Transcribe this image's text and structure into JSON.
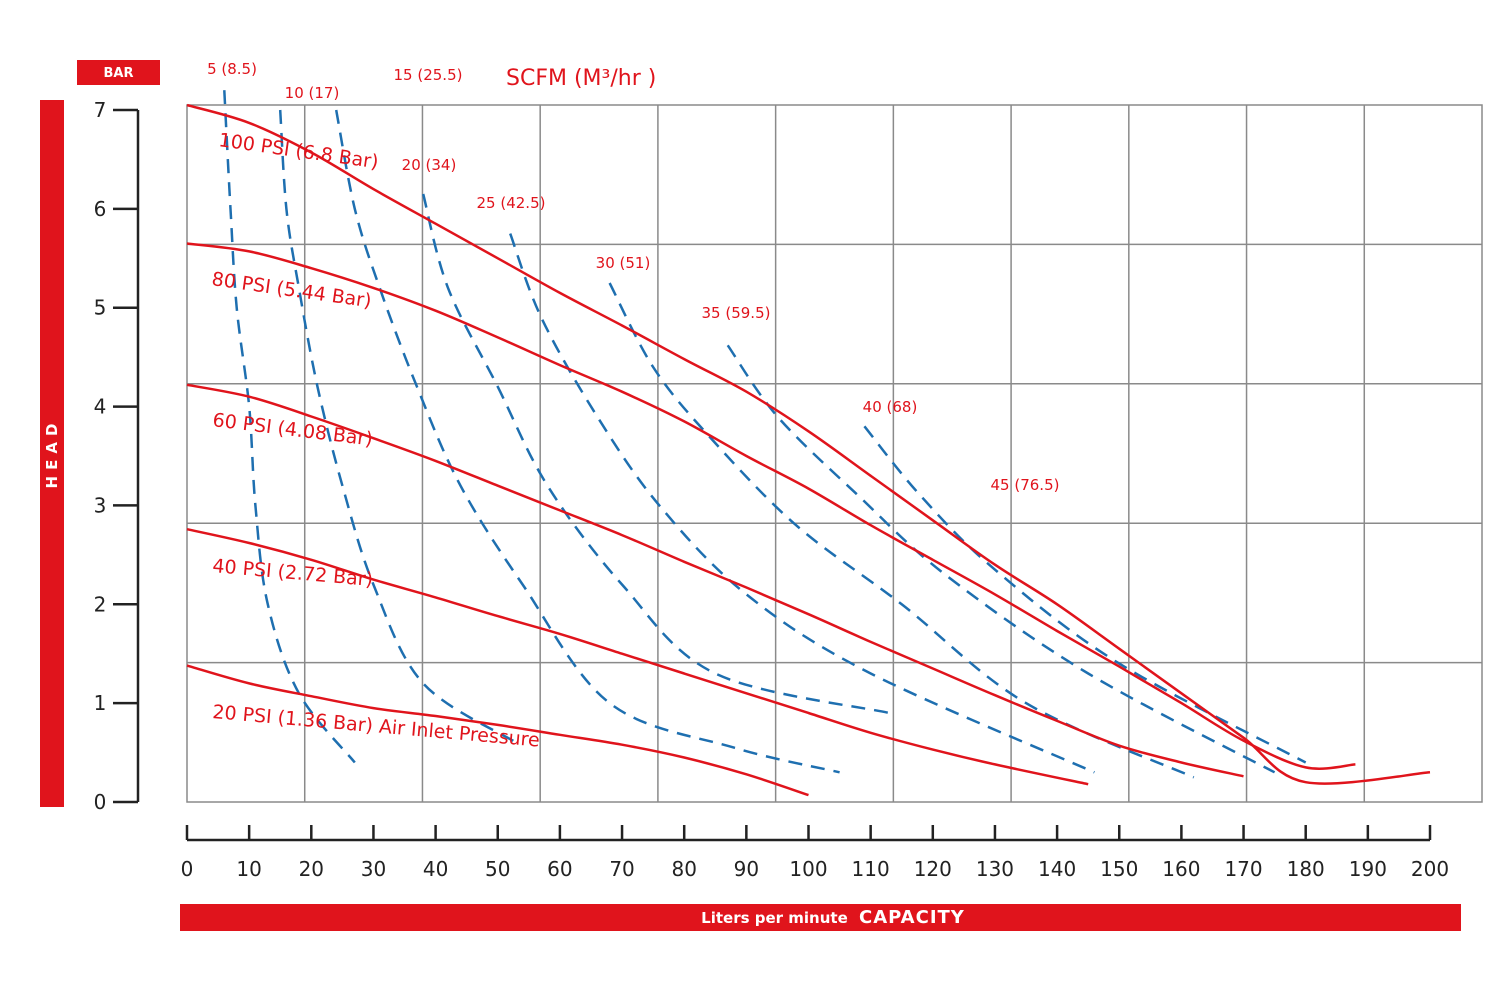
{
  "chart_data": {
    "type": "line",
    "ylabel": "HEAD",
    "yunit": "BAR",
    "xlabel_prefix": "Liters per minute",
    "xlabel_main": "CAPACITY",
    "flow_title": "SCFM (M³/hr )",
    "xlim": [
      0,
      200
    ],
    "ylim": [
      0,
      7
    ],
    "y_ticks": [
      "0",
      "1",
      "2",
      "3",
      "4",
      "5",
      "6",
      "7"
    ],
    "x_ticks": [
      "0",
      "10",
      "20",
      "30",
      "40",
      "50",
      "60",
      "70",
      "80",
      "90",
      "100",
      "110",
      "120",
      "130",
      "140",
      "150",
      "160",
      "170",
      "180",
      "190",
      "200"
    ],
    "grid": true,
    "colors": {
      "accent": "#e0141c",
      "flow": "#1e6fb0",
      "grid": "#8a8a8a",
      "axis": "#222222"
    },
    "pressure_series": [
      {
        "name": "100 PSI (6.8 Bar)",
        "points": [
          [
            0,
            7.05
          ],
          [
            10,
            6.87
          ],
          [
            20,
            6.57
          ],
          [
            30,
            6.2
          ],
          [
            40,
            5.85
          ],
          [
            50,
            5.5
          ],
          [
            60,
            5.15
          ],
          [
            70,
            4.82
          ],
          [
            80,
            4.48
          ],
          [
            90,
            4.15
          ],
          [
            100,
            3.75
          ],
          [
            110,
            3.3
          ],
          [
            120,
            2.85
          ],
          [
            130,
            2.4
          ],
          [
            140,
            2.0
          ],
          [
            150,
            1.55
          ],
          [
            160,
            1.1
          ],
          [
            170,
            0.65
          ],
          [
            180,
            0.2
          ],
          [
            200,
            0.3
          ]
        ]
      },
      {
        "name": "80 PSI (5.44 Bar)",
        "points": [
          [
            0,
            5.65
          ],
          [
            10,
            5.57
          ],
          [
            20,
            5.4
          ],
          [
            30,
            5.2
          ],
          [
            40,
            4.97
          ],
          [
            50,
            4.7
          ],
          [
            60,
            4.42
          ],
          [
            70,
            4.15
          ],
          [
            80,
            3.85
          ],
          [
            90,
            3.5
          ],
          [
            100,
            3.17
          ],
          [
            110,
            2.8
          ],
          [
            120,
            2.45
          ],
          [
            130,
            2.1
          ],
          [
            140,
            1.73
          ],
          [
            150,
            1.37
          ],
          [
            160,
            1.0
          ],
          [
            170,
            0.62
          ],
          [
            180,
            0.35
          ],
          [
            188,
            0.38
          ]
        ]
      },
      {
        "name": "60 PSI (4.08 Bar)",
        "points": [
          [
            0,
            4.22
          ],
          [
            10,
            4.1
          ],
          [
            20,
            3.9
          ],
          [
            30,
            3.68
          ],
          [
            40,
            3.45
          ],
          [
            50,
            3.2
          ],
          [
            60,
            2.95
          ],
          [
            70,
            2.7
          ],
          [
            80,
            2.43
          ],
          [
            90,
            2.17
          ],
          [
            100,
            1.9
          ],
          [
            110,
            1.62
          ],
          [
            120,
            1.35
          ],
          [
            130,
            1.08
          ],
          [
            140,
            0.82
          ],
          [
            150,
            0.57
          ],
          [
            160,
            0.4
          ],
          [
            170,
            0.26
          ]
        ]
      },
      {
        "name": "40 PSI (2.72 Bar)",
        "points": [
          [
            0,
            2.76
          ],
          [
            10,
            2.62
          ],
          [
            20,
            2.45
          ],
          [
            30,
            2.25
          ],
          [
            40,
            2.07
          ],
          [
            50,
            1.88
          ],
          [
            60,
            1.7
          ],
          [
            70,
            1.5
          ],
          [
            80,
            1.3
          ],
          [
            90,
            1.1
          ],
          [
            100,
            0.9
          ],
          [
            110,
            0.7
          ],
          [
            120,
            0.53
          ],
          [
            130,
            0.38
          ],
          [
            145,
            0.18
          ]
        ]
      },
      {
        "name": "20 PSI (1.36 Bar) Air Inlet Pressure",
        "points": [
          [
            0,
            1.38
          ],
          [
            10,
            1.2
          ],
          [
            20,
            1.07
          ],
          [
            30,
            0.95
          ],
          [
            40,
            0.87
          ],
          [
            50,
            0.78
          ],
          [
            60,
            0.68
          ],
          [
            70,
            0.58
          ],
          [
            80,
            0.45
          ],
          [
            90,
            0.28
          ],
          [
            100,
            0.07
          ]
        ]
      }
    ],
    "flow_series": [
      {
        "name": "5 (8.5)",
        "points": [
          [
            6,
            7.2
          ],
          [
            7,
            6.0
          ],
          [
            8,
            5.0
          ],
          [
            10,
            4.0
          ],
          [
            11,
            3.0
          ],
          [
            13,
            2.0
          ],
          [
            18,
            1.1
          ],
          [
            27,
            0.4
          ]
        ]
      },
      {
        "name": "10 (17)",
        "points": [
          [
            15,
            7.0
          ],
          [
            16,
            6.0
          ],
          [
            18,
            5.2
          ],
          [
            21,
            4.2
          ],
          [
            25,
            3.2
          ],
          [
            30,
            2.2
          ],
          [
            38,
            1.2
          ],
          [
            53,
            0.6
          ]
        ]
      },
      {
        "name": "15 (25.5)",
        "points": [
          [
            24,
            7.0
          ],
          [
            27,
            6.0
          ],
          [
            31,
            5.2
          ],
          [
            37,
            4.2
          ],
          [
            44,
            3.2
          ],
          [
            54,
            2.2
          ],
          [
            68,
            1.0
          ],
          [
            88,
            0.55
          ],
          [
            105,
            0.3
          ]
        ]
      },
      {
        "name": "20 (34)",
        "points": [
          [
            38,
            6.15
          ],
          [
            42,
            5.2
          ],
          [
            50,
            4.2
          ],
          [
            58,
            3.2
          ],
          [
            70,
            2.2
          ],
          [
            85,
            1.3
          ],
          [
            113,
            0.9
          ]
        ]
      },
      {
        "name": "25 (42.5)",
        "points": [
          [
            52,
            5.75
          ],
          [
            57,
            4.9
          ],
          [
            66,
            3.9
          ],
          [
            76,
            3.0
          ],
          [
            90,
            2.1
          ],
          [
            110,
            1.3
          ],
          [
            146,
            0.3
          ]
        ]
      },
      {
        "name": "30 (51)",
        "points": [
          [
            68,
            5.25
          ],
          [
            75,
            4.4
          ],
          [
            84,
            3.7
          ],
          [
            98,
            2.8
          ],
          [
            115,
            2.0
          ],
          [
            135,
            1.0
          ],
          [
            162,
            0.25
          ]
        ]
      },
      {
        "name": "35 (59.5)",
        "points": [
          [
            87,
            4.62
          ],
          [
            95,
            3.9
          ],
          [
            108,
            3.1
          ],
          [
            122,
            2.3
          ],
          [
            145,
            1.3
          ],
          [
            175,
            0.3
          ]
        ]
      },
      {
        "name": "40 (68)",
        "points": [
          [
            109,
            3.8
          ],
          [
            118,
            3.1
          ],
          [
            130,
            2.35
          ],
          [
            150,
            1.4
          ],
          [
            180,
            0.4
          ]
        ]
      },
      {
        "name": "45 (76.5)",
        "points": [
          [
            132,
            2.97
          ]
        ]
      }
    ]
  }
}
